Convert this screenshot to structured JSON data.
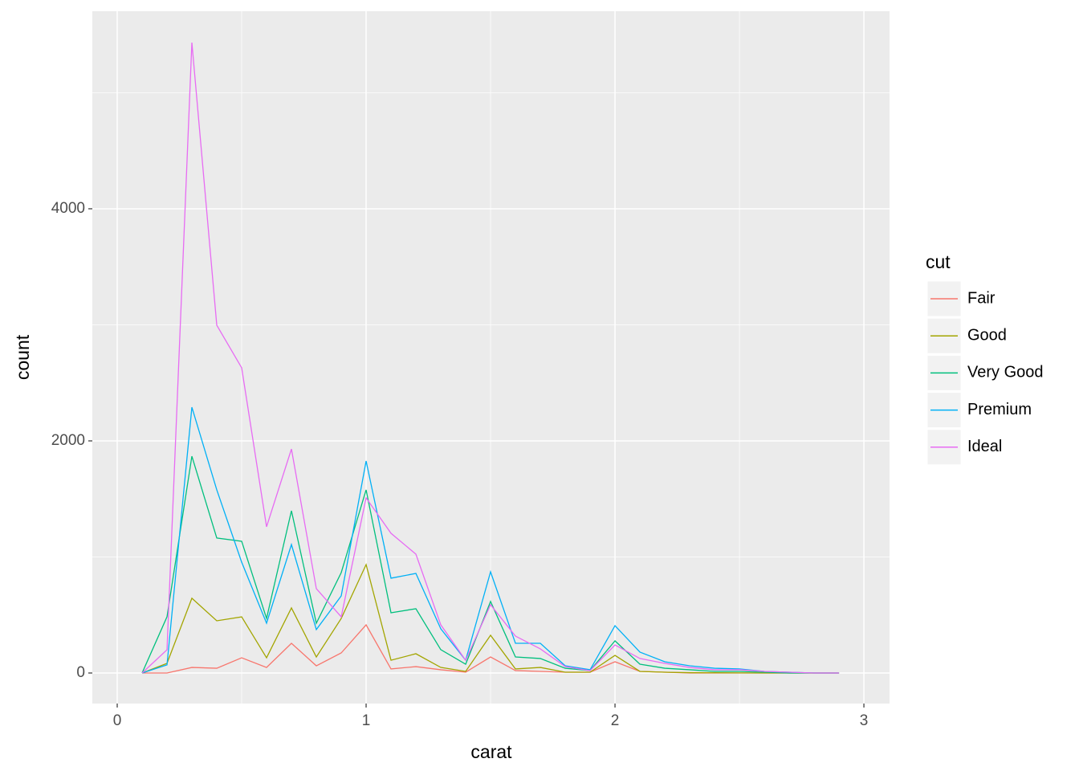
{
  "chart_data": {
    "type": "line",
    "x_label": "carat",
    "y_label": "count",
    "legend_title": "cut",
    "x": [
      0.1,
      0.2,
      0.3,
      0.4,
      0.5,
      0.6,
      0.7,
      0.8,
      0.9,
      1.0,
      1.1,
      1.2,
      1.3,
      1.4,
      1.5,
      1.6,
      1.7,
      1.8,
      1.9,
      2.0,
      2.1,
      2.2,
      2.3,
      2.4,
      2.5,
      2.6,
      2.7,
      2.8,
      2.9
    ],
    "series": [
      {
        "name": "Fair",
        "color": "#F8766D",
        "values": [
          0,
          0,
          48,
          41,
          131,
          48,
          256,
          62,
          173,
          415,
          35,
          55,
          28,
          7,
          138,
          21,
          14,
          7,
          7,
          97,
          14,
          7,
          0,
          0,
          0,
          0,
          0,
          0,
          0
        ]
      },
      {
        "name": "Good",
        "color": "#A3A500",
        "values": [
          0,
          83,
          644,
          450,
          484,
          131,
          561,
          138,
          470,
          934,
          110,
          166,
          48,
          14,
          325,
          35,
          48,
          7,
          7,
          152,
          14,
          7,
          3,
          2,
          1,
          0,
          0,
          0,
          0
        ]
      },
      {
        "name": "Very Good",
        "color": "#00BF7D",
        "values": [
          0,
          484,
          1868,
          1163,
          1135,
          470,
          1398,
          429,
          865,
          1578,
          519,
          554,
          201,
          76,
          616,
          138,
          125,
          41,
          21,
          277,
          76,
          41,
          28,
          14,
          14,
          7,
          0,
          0,
          0
        ]
      },
      {
        "name": "Premium",
        "color": "#00B0F6",
        "values": [
          0,
          70,
          2290,
          1578,
          955,
          429,
          1107,
          374,
          664,
          1827,
          817,
          858,
          381,
          110,
          872,
          256,
          256,
          62,
          28,
          408,
          180,
          97,
          62,
          41,
          35,
          14,
          7,
          0,
          0
        ]
      },
      {
        "name": "Ideal",
        "color": "#E76BF3",
        "values": [
          0,
          200,
          5432,
          2997,
          2630,
          1260,
          1930,
          727,
          484,
          1509,
          1204,
          1024,
          415,
          110,
          588,
          318,
          208,
          55,
          20,
          242,
          125,
          83,
          48,
          28,
          28,
          14,
          7,
          0,
          0
        ]
      }
    ],
    "xlim": [
      -0.1,
      3.103
    ],
    "ylim": [
      -263,
      5702
    ],
    "xticks": [
      0,
      1,
      2,
      3
    ],
    "yticks": [
      0,
      2000,
      4000
    ],
    "x_minor": [
      0.5,
      1.5,
      2.5
    ],
    "y_minor": [
      1000,
      3000,
      5000
    ],
    "grid": true,
    "legend_position": "right"
  }
}
